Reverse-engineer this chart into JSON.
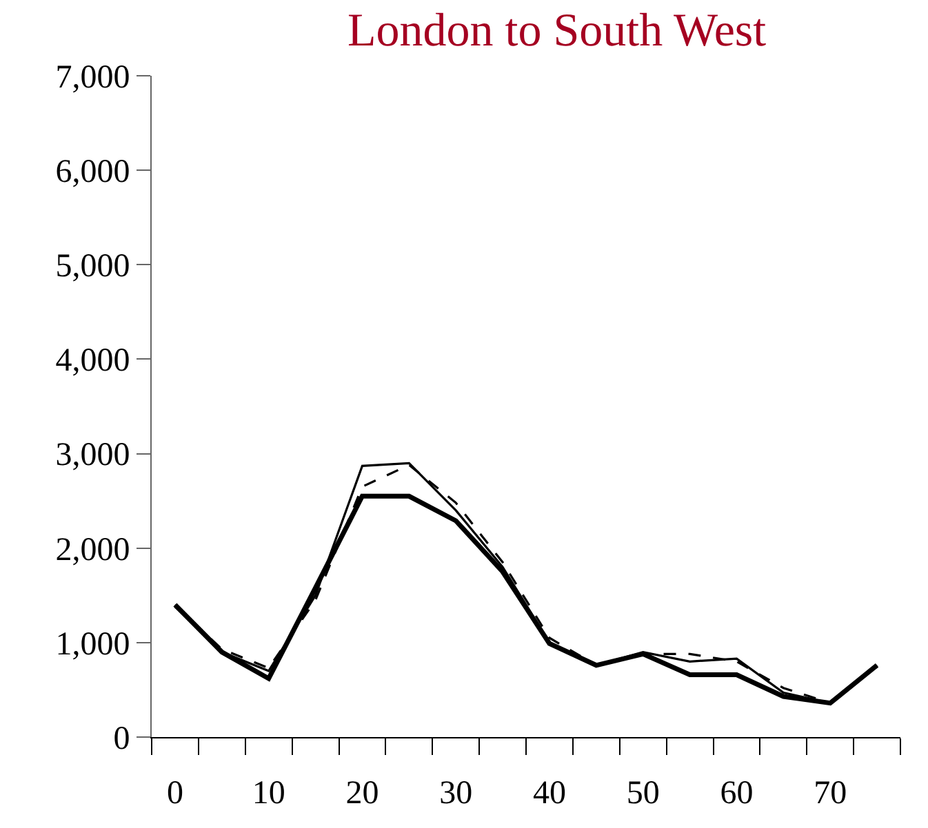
{
  "chart_data": {
    "type": "line",
    "title": "London to South West",
    "categories": [
      "0",
      null,
      "10",
      null,
      "20",
      null,
      "30",
      null,
      "40",
      null,
      "50",
      null,
      "60",
      null,
      "70",
      null
    ],
    "ylim": [
      0,
      7000
    ],
    "yticks": [
      {
        "value": 0,
        "label": "0"
      },
      {
        "value": 1000,
        "label": "1,000"
      },
      {
        "value": 2000,
        "label": "2,000"
      },
      {
        "value": 3000,
        "label": "3,000"
      },
      {
        "value": 4000,
        "label": "4,000"
      },
      {
        "value": 5000,
        "label": "5,000"
      },
      {
        "value": 6000,
        "label": "6,000"
      },
      {
        "value": 7000,
        "label": "7,000"
      }
    ],
    "marker": "none",
    "series": [
      {
        "color": "#000000",
        "line_style": "solid",
        "values": [
          1380,
          900,
          700,
          1500,
          2870,
          2900,
          2400,
          1800,
          1000,
          760,
          900,
          800,
          830,
          470,
          360,
          760
        ]
      },
      {
        "color": "#000000",
        "line_style": "dashed",
        "values": [
          1400,
          930,
          730,
          1450,
          2650,
          2880,
          2480,
          1850,
          1050,
          760,
          880,
          880,
          800,
          520,
          360,
          760
        ]
      },
      {
        "color": "#000000",
        "line_style": "solid",
        "values": [
          1400,
          900,
          620,
          1580,
          2550,
          2550,
          2290,
          1750,
          990,
          760,
          880,
          660,
          660,
          430,
          360,
          760
        ]
      }
    ]
  }
}
